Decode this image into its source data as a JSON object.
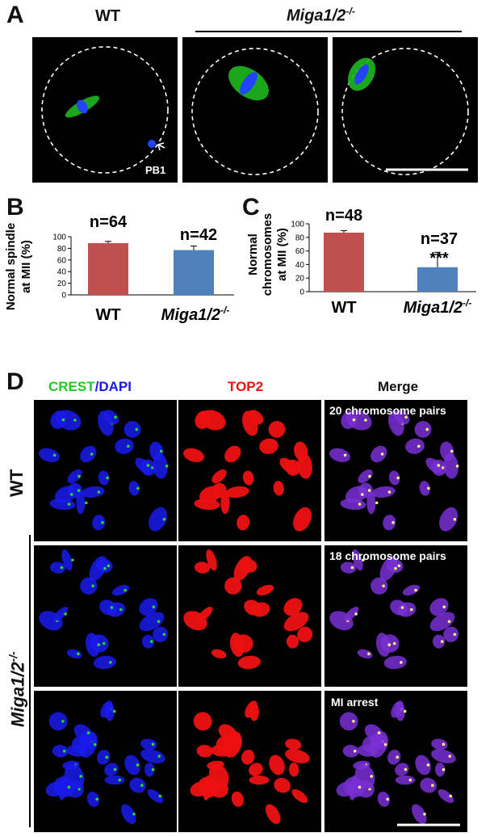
{
  "panels": {
    "a": {
      "letter": "A",
      "wt_label": "WT",
      "mut_label": "Miga1/2",
      "mut_sup": "-/-",
      "pb1": "PB1"
    },
    "b": {
      "letter": "B",
      "ylabel_line1": "Normal spindle",
      "ylabel_line2": "at MII (%)",
      "n_labels": [
        "n=64",
        "n=42"
      ],
      "x_labels": [
        "WT",
        "Miga1/2"
      ],
      "mut_sup": "-/-"
    },
    "c": {
      "letter": "C",
      "ylabel_line1": "Normal",
      "ylabel_line2": "chromosomes",
      "ylabel_line3": "at MII (%)",
      "n_labels": [
        "n=48",
        "n=37"
      ],
      "significance": "***",
      "x_labels": [
        "WT",
        "Miga1/2"
      ],
      "mut_sup": "-/-"
    },
    "d": {
      "letter": "D",
      "col_crest": "CREST",
      "col_slash": "/",
      "col_dapi": "DAPI",
      "col_top2": "TOP2",
      "col_merge": "Merge",
      "row_wt": "WT",
      "row_mut": "Miga1/2",
      "row_mut_sup": "-/-",
      "annot_1": "20 chromosome pairs",
      "annot_2": "18 chromosome pairs",
      "annot_3": "MI arrest"
    }
  },
  "colors": {
    "wt_bar": "#c0504d",
    "mut_bar": "#4f81bd",
    "crest": "#22dd22",
    "dapi": "#1a1aee",
    "top2": "#ee1111"
  },
  "chart_data": [
    {
      "type": "bar",
      "panel": "B",
      "categories": [
        "WT",
        "Miga1/2-/-"
      ],
      "values": [
        89,
        77
      ],
      "errors": [
        3,
        7
      ],
      "ylabel": "Normal spindle at MII (%)",
      "ylim": [
        0,
        100
      ],
      "yticks": [
        0,
        20,
        40,
        60,
        80,
        100
      ],
      "annotations": [
        "n=64",
        "n=42"
      ]
    },
    {
      "type": "bar",
      "panel": "C",
      "categories": [
        "WT",
        "Miga1/2-/-"
      ],
      "values": [
        87,
        36
      ],
      "errors": [
        3,
        22
      ],
      "ylabel": "Normal chromosomes at MII (%)",
      "ylim": [
        0,
        100
      ],
      "yticks": [
        0,
        20,
        40,
        60,
        80,
        100
      ],
      "annotations": [
        "n=48",
        "n=37",
        "***"
      ]
    }
  ]
}
